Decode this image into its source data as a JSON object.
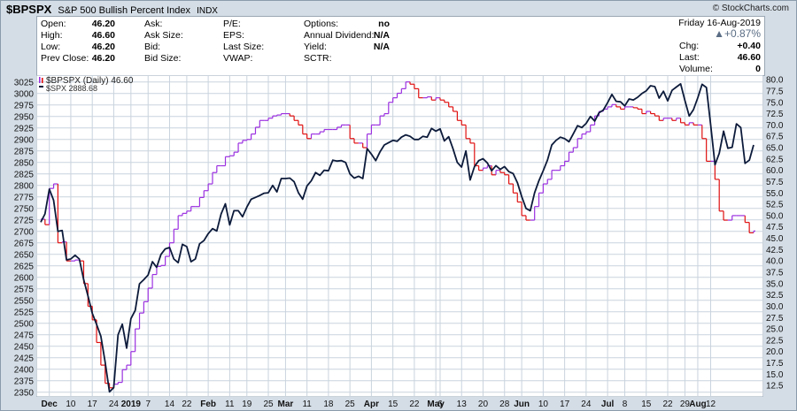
{
  "header": {
    "symbol": "$BPSPX",
    "name": "S&P 500 Bullish Percent Index",
    "exchange": "INDX",
    "brand": "© StockCharts.com"
  },
  "quote": {
    "open_label": "Open:",
    "open": "46.20",
    "high_label": "High:",
    "high": "46.60",
    "low_label": "Low:",
    "low": "46.20",
    "prev_close_label": "Prev Close:",
    "prev_close": "46.20",
    "ask_label": "Ask:",
    "ask_size_label": "Ask Size:",
    "bid_label": "Bid:",
    "bid_size_label": "Bid Size:",
    "pe_label": "P/E:",
    "eps_label": "EPS:",
    "last_size_label": "Last Size:",
    "vwap_label": "VWAP:",
    "options_label": "Options:",
    "options": "no",
    "annual_dividend_label": "Annual Dividend:",
    "annual_dividend": "N/A",
    "yield_label": "Yield:",
    "yield": "N/A",
    "sctr_label": "SCTR:",
    "date": "Friday  16-Aug-2019",
    "change_pct": "▲+0.87%",
    "chg_label": "Chg:",
    "chg": "+0.40",
    "last_label": "Last:",
    "last": "46.60",
    "volume_label": "Volume:",
    "volume": "0"
  },
  "legend": {
    "bpspx": "$BPSPX (Daily) 46.60",
    "spx": "$SPX 2888.68"
  },
  "colors": {
    "up": "#9b30e0",
    "down": "#e01010",
    "spx": "#0c1a3a",
    "grid": "#c9d3dd",
    "change_up": "#5a6d85"
  },
  "chart_data": {
    "type": "line",
    "left_axis": {
      "min": 2340,
      "max": 3040,
      "ticks": [
        2350,
        2375,
        2400,
        2425,
        2450,
        2475,
        2500,
        2525,
        2550,
        2575,
        2600,
        2625,
        2650,
        2675,
        2700,
        2725,
        2750,
        2775,
        2800,
        2825,
        2850,
        2875,
        2900,
        2925,
        2950,
        2975,
        3000,
        3025
      ]
    },
    "right_axis": {
      "min": 10,
      "max": 81,
      "ticks": [
        12.5,
        15.0,
        17.5,
        20.0,
        22.5,
        25.0,
        27.5,
        30.0,
        32.5,
        35.0,
        37.5,
        40.0,
        42.5,
        45.0,
        47.5,
        50.0,
        52.5,
        55.0,
        57.5,
        60.0,
        62.5,
        65.0,
        67.5,
        70.0,
        72.5,
        75.0,
        77.5,
        80.0
      ]
    },
    "x_labels": [
      {
        "i": 2,
        "t": "Dec",
        "b": true
      },
      {
        "i": 7,
        "t": "10"
      },
      {
        "i": 12,
        "t": "17"
      },
      {
        "i": 17,
        "t": "24"
      },
      {
        "i": 21,
        "t": "2019",
        "b": true
      },
      {
        "i": 25,
        "t": "7"
      },
      {
        "i": 30,
        "t": "14"
      },
      {
        "i": 34,
        "t": "22"
      },
      {
        "i": 39,
        "t": "Feb",
        "b": true
      },
      {
        "i": 44,
        "t": "11"
      },
      {
        "i": 48,
        "t": "19"
      },
      {
        "i": 53,
        "t": "25"
      },
      {
        "i": 57,
        "t": "Mar",
        "b": true
      },
      {
        "i": 62,
        "t": "11"
      },
      {
        "i": 67,
        "t": "18"
      },
      {
        "i": 72,
        "t": "25"
      },
      {
        "i": 77,
        "t": "Apr",
        "b": true
      },
      {
        "i": 82,
        "t": "15"
      },
      {
        "i": 87,
        "t": "22"
      },
      {
        "i": 92,
        "t": "May",
        "b": true
      },
      {
        "i": 93,
        "t": "6"
      },
      {
        "i": 98,
        "t": "13"
      },
      {
        "i": 103,
        "t": "20"
      },
      {
        "i": 108,
        "t": "28"
      },
      {
        "i": 112,
        "t": "Jun",
        "b": true
      },
      {
        "i": 117,
        "t": "10"
      },
      {
        "i": 122,
        "t": "17"
      },
      {
        "i": 127,
        "t": "24"
      },
      {
        "i": 132,
        "t": "Jul",
        "b": true
      },
      {
        "i": 136,
        "t": "8"
      },
      {
        "i": 141,
        "t": "15"
      },
      {
        "i": 146,
        "t": "22"
      },
      {
        "i": 150,
        "t": "29"
      },
      {
        "i": 153,
        "t": "Aug",
        "b": true
      },
      {
        "i": 156,
        "t": "12"
      }
    ],
    "spx": [
      2720,
      2738,
      2792,
      2768,
      2700,
      2702,
      2638,
      2640,
      2648,
      2640,
      2595,
      2560,
      2522,
      2498,
      2472,
      2416,
      2351,
      2360,
      2475,
      2498,
      2446,
      2510,
      2528,
      2586,
      2595,
      2605,
      2634,
      2622,
      2650,
      2662,
      2665,
      2640,
      2632,
      2672,
      2667,
      2634,
      2640,
      2673,
      2680,
      2695,
      2706,
      2701,
      2738,
      2760,
      2714,
      2745,
      2745,
      2732,
      2753,
      2770,
      2774,
      2778,
      2783,
      2784,
      2800,
      2786,
      2815,
      2815,
      2816,
      2808,
      2784,
      2770,
      2799,
      2810,
      2828,
      2822,
      2833,
      2832,
      2855,
      2853,
      2854,
      2850,
      2825,
      2816,
      2820,
      2815,
      2880,
      2868,
      2854,
      2873,
      2888,
      2893,
      2898,
      2896,
      2905,
      2910,
      2907,
      2900,
      2900,
      2907,
      2905,
      2924,
      2918,
      2923,
      2897,
      2906,
      2880,
      2850,
      2840,
      2875,
      2812,
      2841,
      2854,
      2858,
      2849,
      2832,
      2843,
      2835,
      2841,
      2830,
      2826,
      2806,
      2776,
      2750,
      2745,
      2784,
      2810,
      2832,
      2855,
      2888,
      2898,
      2905,
      2902,
      2895,
      2912,
      2930,
      2926,
      2935,
      2950,
      2940,
      2958,
      2964,
      2980,
      2998,
      2983,
      2982,
      2973,
      2988,
      2986,
      2992,
      3000,
      3006,
      3017,
      3015,
      2990,
      3005,
      2984,
      3007,
      3014,
      3021,
      2985,
      2951,
      2965,
      2991,
      3020,
      3013,
      2932,
      2845,
      2870,
      2918,
      2881,
      2883,
      2934,
      2926,
      2848,
      2855,
      2888
    ],
    "bpspx": [
      49.2,
      48.0,
      56.0,
      57.0,
      44.0,
      44.2,
      40.0,
      40.0,
      40.2,
      40.0,
      35.0,
      30.0,
      27.0,
      22.0,
      17.0,
      13.0,
      12.0,
      12.8,
      13.2,
      16.0,
      17.0,
      20.0,
      25.0,
      28.5,
      31.0,
      34.0,
      37.0,
      38.8,
      39.0,
      41.0,
      44.0,
      47.0,
      50.0,
      50.5,
      51.0,
      52.0,
      52.0,
      54.0,
      55.5,
      57.0,
      59.5,
      61.0,
      61.0,
      63.0,
      63.2,
      64.0,
      66.0,
      66.6,
      66.8,
      68.0,
      69.5,
      71.0,
      71.0,
      71.5,
      72.0,
      72.2,
      72.5,
      72.5,
      72.0,
      71.0,
      70.0,
      68.0,
      67.0,
      68.0,
      68.0,
      68.5,
      69.0,
      69.0,
      69.0,
      69.5,
      70.0,
      70.0,
      67.0,
      66.0,
      66.0,
      65.0,
      68.0,
      70.0,
      70.0,
      72.0,
      72.5,
      75.0,
      76.0,
      77.0,
      78.0,
      79.5,
      79.0,
      78.0,
      76.0,
      76.0,
      76.2,
      75.5,
      76.0,
      75.5,
      75.0,
      74.0,
      73.0,
      71.0,
      70.0,
      67.0,
      66.0,
      61.0,
      60.0,
      60.5,
      61.0,
      59.0,
      60.0,
      59.5,
      59.0,
      57.0,
      55.0,
      53.0,
      50.0,
      49.0,
      49.0,
      52.0,
      55.0,
      57.0,
      58.0,
      60.0,
      60.0,
      61.0,
      62.0,
      64.0,
      65.0,
      67.0,
      68.0,
      68.5,
      70.0,
      72.0,
      73.0,
      73.5,
      74.0,
      74.5,
      74.0,
      73.5,
      74.0,
      74.0,
      73.8,
      73.5,
      72.5,
      73.0,
      72.5,
      72.0,
      71.0,
      71.5,
      71.5,
      71.0,
      71.5,
      70.5,
      70.0,
      70.5,
      70.0,
      70.0,
      67.0,
      62.0,
      62.0,
      58.0,
      51.0,
      49.0,
      49.0,
      50.0,
      50.0,
      50.0,
      48.5,
      46.2,
      46.6
    ]
  }
}
